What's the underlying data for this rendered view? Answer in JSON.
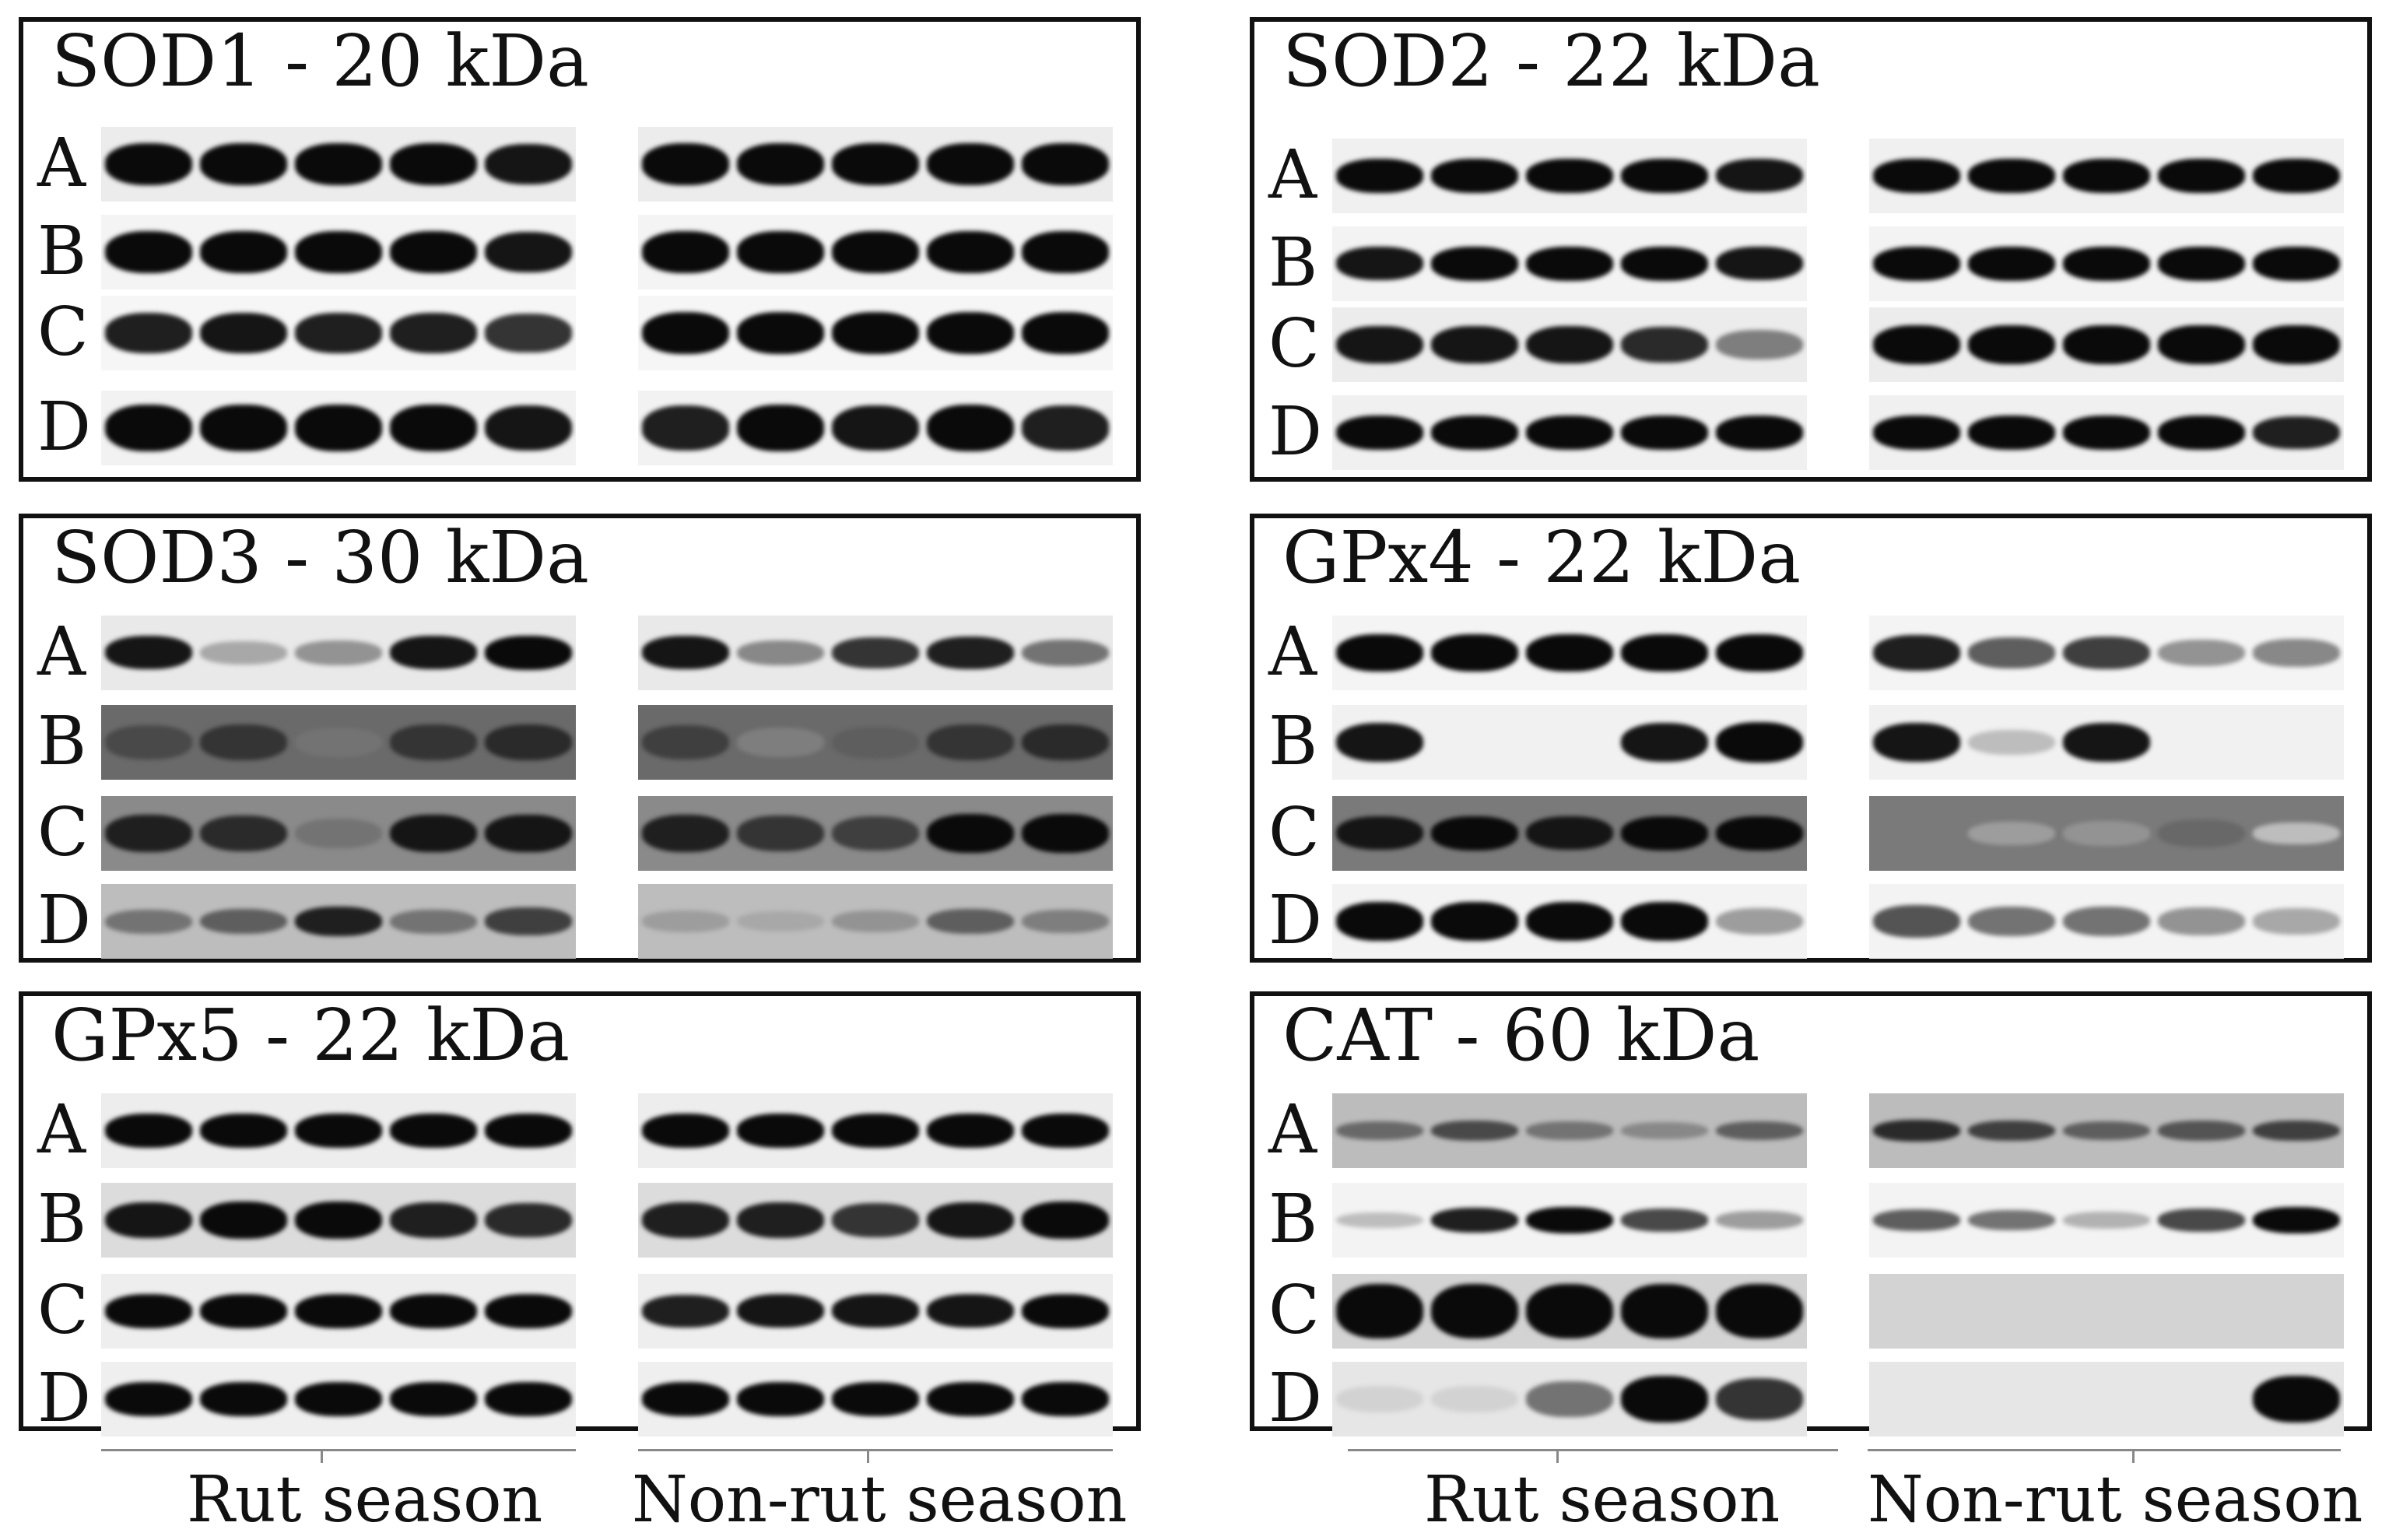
{
  "panels": [
    {
      "title": "SOD1 - 20 kDa",
      "rows": [
        "A",
        "B",
        "C",
        "D"
      ]
    },
    {
      "title": "SOD2 - 22 kDa",
      "rows": [
        "A",
        "B",
        "C",
        "D"
      ]
    },
    {
      "title": "SOD3 - 30 kDa",
      "rows": [
        "A",
        "B",
        "C",
        "D"
      ]
    },
    {
      "title": "GPx4 - 22 kDa",
      "rows": [
        "A",
        "B",
        "C",
        "D"
      ]
    },
    {
      "title": "GPx5 - 22 kDa",
      "rows": [
        "A",
        "B",
        "C",
        "D"
      ]
    },
    {
      "title": "CAT - 60 kDa",
      "rows": [
        "A",
        "B",
        "C",
        "D"
      ]
    }
  ],
  "group_labels": {
    "left": [
      "Rut season",
      "Non-rut season"
    ],
    "right": [
      "Rut season",
      "Non-rut season"
    ]
  },
  "colors": {
    "band": "#0a0a0a",
    "frame": "#111111",
    "axis": "#888888"
  }
}
